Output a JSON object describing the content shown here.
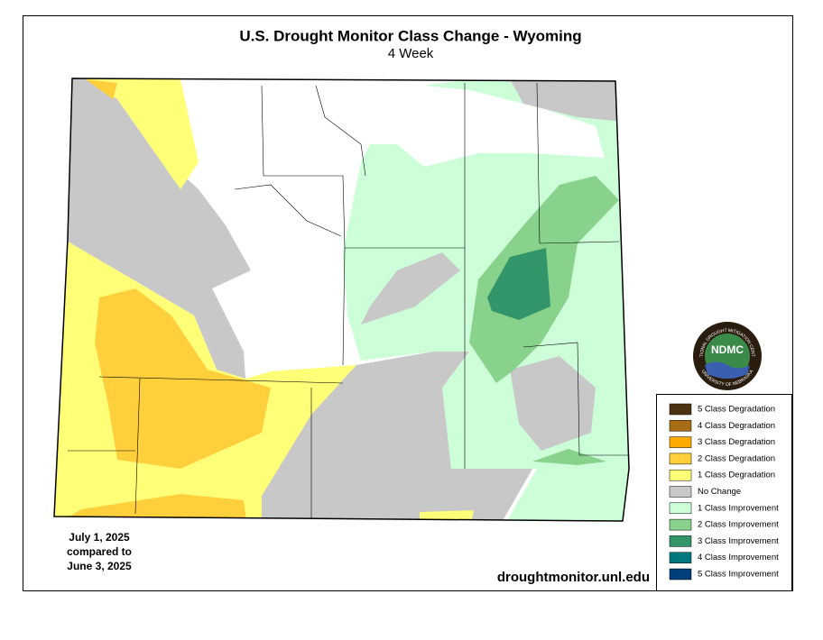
{
  "header": {
    "title": "U.S. Drought Monitor Class Change - Wyoming",
    "subtitle": "4 Week"
  },
  "legend": {
    "items": [
      {
        "label": "5 Class Degradation",
        "color": "#4d3212"
      },
      {
        "label": "4 Class Degradation",
        "color": "#a86d14"
      },
      {
        "label": "3 Class Degradation",
        "color": "#ffaa00"
      },
      {
        "label": "2 Class Degradation",
        "color": "#ffd03c"
      },
      {
        "label": "1 Class Degradation",
        "color": "#ffff78"
      },
      {
        "label": "No Change",
        "color": "#c8c8c8"
      },
      {
        "label": "1 Class Improvement",
        "color": "#ccffd8"
      },
      {
        "label": "2 Class Improvement",
        "color": "#88d28c"
      },
      {
        "label": "3 Class Improvement",
        "color": "#33956a"
      },
      {
        "label": "4 Class Improvement",
        "color": "#00787d"
      },
      {
        "label": "5 Class Improvement",
        "color": "#003f7a"
      }
    ]
  },
  "dates": {
    "line1": "July 1, 2025",
    "line2": "compared to",
    "line3": "June 3, 2025"
  },
  "source": "droughtmonitor.unl.edu",
  "logo": {
    "abbr": "NDMC",
    "top_text": "NATIONAL DROUGHT MITIGATION CENTER",
    "bottom_text": "UNIVERSITY OF NEBRASKA"
  }
}
